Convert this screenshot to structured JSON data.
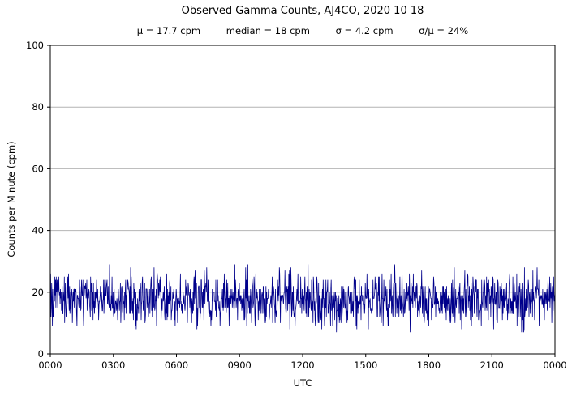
{
  "page": {
    "background": "#ffffff"
  },
  "chart_data": {
    "type": "line",
    "title": "Observed Gamma Counts, AJ4CO, 2020 10 18",
    "stats_items": [
      "μ = 17.7 cpm",
      "median = 18 cpm",
      "σ = 4.2 cpm",
      "σ/μ = 24%"
    ],
    "stats": {
      "mean_cpm": 17.7,
      "median_cpm": 18,
      "sigma_cpm": 4.2,
      "sigma_over_mu_percent": 24
    },
    "xlabel": "UTC",
    "ylabel": "Counts per Minute (cpm)",
    "ylim": [
      0,
      100
    ],
    "y_ticks": [
      0,
      20,
      40,
      60,
      80,
      100
    ],
    "x_tick_labels": [
      "0000",
      "0300",
      "0600",
      "0900",
      "1200",
      "1500",
      "1800",
      "2100",
      "0000"
    ],
    "x_range_minutes": [
      0,
      1440
    ],
    "x_tick_interval_minutes": 180,
    "grid": {
      "horizontal": true,
      "vertical": false,
      "color": "#b4b4b4"
    },
    "legend": "none",
    "series": [
      {
        "name": "observed-gamma-counts",
        "color": "#00008b",
        "n_points": 1440,
        "sample_interval": "1 minute",
        "mean": 17.7,
        "median": 18,
        "sigma": 4.2,
        "min_observed": 7,
        "max_observed": 31,
        "distribution": "approximately normal noise, integer counts per minute",
        "prng_seed": 20201018
      }
    ]
  }
}
